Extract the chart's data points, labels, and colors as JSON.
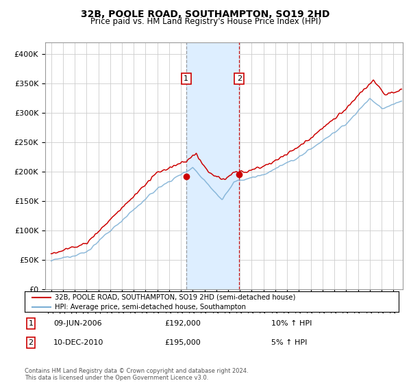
{
  "title": "32B, POOLE ROAD, SOUTHAMPTON, SO19 2HD",
  "subtitle": "Price paid vs. HM Land Registry's House Price Index (HPI)",
  "legend_line1": "32B, POOLE ROAD, SOUTHAMPTON, SO19 2HD (semi-detached house)",
  "legend_line2": "HPI: Average price, semi-detached house, Southampton",
  "sale1_date": "09-JUN-2006",
  "sale1_price": "£192,000",
  "sale1_hpi": "10% ↑ HPI",
  "sale2_date": "10-DEC-2010",
  "sale2_price": "£195,000",
  "sale2_hpi": "5% ↑ HPI",
  "footer": "Contains HM Land Registry data © Crown copyright and database right 2024.\nThis data is licensed under the Open Government Licence v3.0.",
  "sale1_x": 2006.44,
  "sale1_y": 192000,
  "sale2_x": 2010.94,
  "sale2_y": 195000,
  "red_color": "#cc0000",
  "blue_color": "#7aaed4",
  "shade_color": "#ddeeff",
  "grid_color": "#cccccc",
  "sale1_vline_color": "#888888",
  "sale2_vline_color": "#cc0000",
  "ylim": [
    0,
    420000
  ],
  "xlim_start": 1994.5,
  "xlim_end": 2024.8
}
